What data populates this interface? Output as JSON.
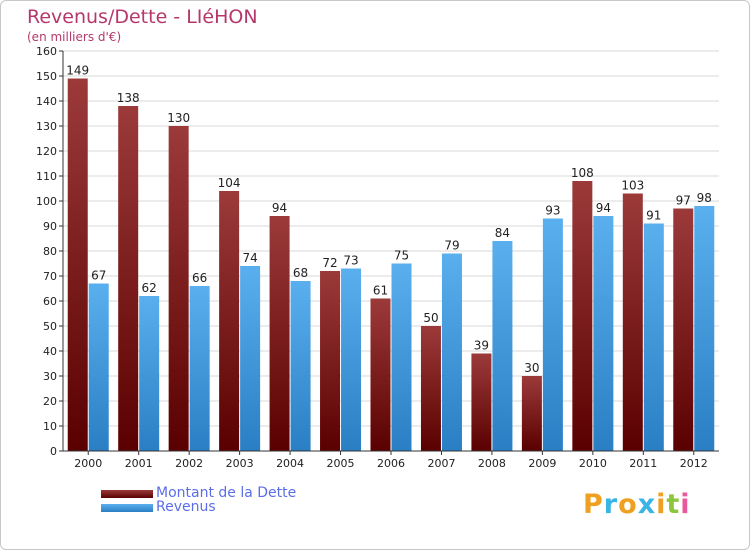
{
  "title": "Revenus/Dette - LIéHON",
  "subtitle": "(en milliers d'€)",
  "colors": {
    "dette_dark": "#5a0000",
    "dette_light": "#9c3a3a",
    "revenus_dark": "#2a7fc4",
    "revenus_light": "#5aafee",
    "title": "#b5386b",
    "legend_text": "#5b6ee8",
    "grid": "#d8d8d8"
  },
  "chart_data": {
    "type": "bar",
    "categories": [
      "2000",
      "2001",
      "2002",
      "2003",
      "2004",
      "2005",
      "2006",
      "2007",
      "2008",
      "2009",
      "2010",
      "2011",
      "2012"
    ],
    "series": [
      {
        "name": "Montant de la Dette",
        "values": [
          149,
          138,
          130,
          104,
          94,
          72,
          61,
          50,
          39,
          30,
          108,
          103,
          97
        ]
      },
      {
        "name": "Revenus",
        "values": [
          67,
          62,
          66,
          74,
          68,
          73,
          75,
          79,
          84,
          93,
          94,
          91,
          98
        ]
      }
    ],
    "ylim": [
      0,
      160
    ],
    "yticks": [
      0,
      10,
      20,
      30,
      40,
      50,
      60,
      70,
      80,
      90,
      100,
      110,
      120,
      130,
      140,
      150,
      160
    ],
    "grid": true,
    "legend_position": "bottom-left"
  },
  "legend": [
    {
      "label": "Montant de la Dette"
    },
    {
      "label": "Revenus"
    }
  ],
  "logo": {
    "letters": [
      {
        "ch": "P",
        "color": "#f0a020"
      },
      {
        "ch": "r",
        "color": "#3ab4e4"
      },
      {
        "ch": "o",
        "color": "#f0a020"
      },
      {
        "ch": "x",
        "color": "#3ab4e4"
      },
      {
        "ch": "i",
        "color": "#f0a020"
      },
      {
        "ch": "t",
        "color": "#8cc63f"
      },
      {
        "ch": "i",
        "color": "#e85a9a"
      }
    ]
  }
}
